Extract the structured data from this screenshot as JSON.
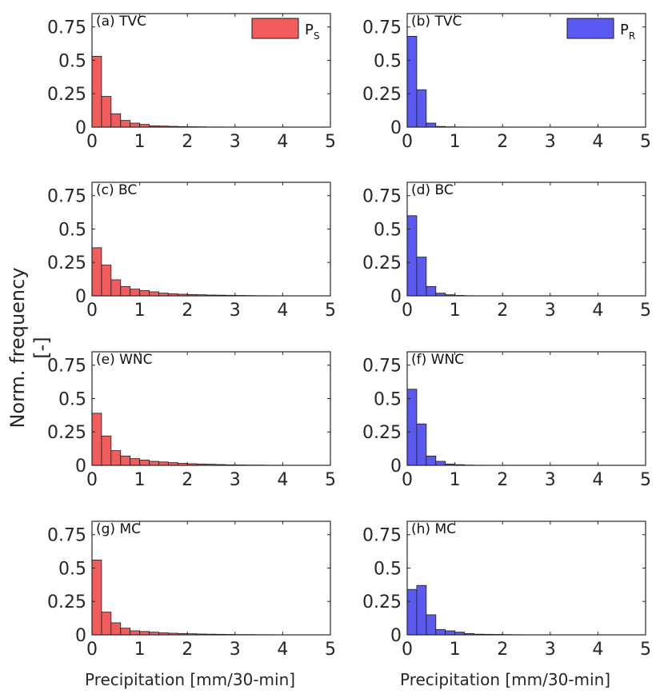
{
  "figure": {
    "ylabel": "Norm. frequency [-]",
    "xlabel_left": "Precipitation [mm/30-min]",
    "xlabel_right": "Precipitation [mm/30-min]",
    "colors": {
      "PS": "#f25c5c",
      "PR": "#5a5af2",
      "axis": "#262626"
    }
  },
  "chart_data": [
    {
      "type": "bar",
      "panel_label": "(a) TVC",
      "legend": {
        "name": "P",
        "sub": "S"
      },
      "xlim": [
        0,
        5
      ],
      "ylim": [
        0,
        0.85
      ],
      "xticks": [
        "0",
        "1",
        "2",
        "3",
        "4",
        "5"
      ],
      "yticks": [
        "0",
        "0.25",
        "0.5",
        "0.75"
      ],
      "bin_width": 0.2,
      "values": [
        0.53,
        0.23,
        0.1,
        0.05,
        0.03,
        0.02,
        0.01,
        0.008,
        0.006,
        0.004,
        0.003,
        0.002,
        0.001,
        0.001,
        0,
        0,
        0,
        0,
        0,
        0,
        0,
        0,
        0,
        0,
        0
      ]
    },
    {
      "type": "bar",
      "panel_label": "(b) TVC",
      "legend": {
        "name": "P",
        "sub": "R"
      },
      "xlim": [
        0,
        5
      ],
      "ylim": [
        0,
        0.85
      ],
      "xticks": [
        "0",
        "1",
        "2",
        "3",
        "4",
        "5"
      ],
      "yticks": [
        "0",
        "0.25",
        "0.5",
        "0.75"
      ],
      "bin_width": 0.2,
      "values": [
        0.68,
        0.28,
        0.03,
        0.005,
        0.002,
        0.001,
        0,
        0,
        0,
        0,
        0,
        0,
        0,
        0,
        0,
        0,
        0,
        0,
        0,
        0,
        0,
        0,
        0,
        0,
        0
      ]
    },
    {
      "type": "bar",
      "panel_label": "(c) BC",
      "xlim": [
        0,
        5
      ],
      "ylim": [
        0,
        0.85
      ],
      "xticks": [
        "0",
        "1",
        "2",
        "3",
        "4",
        "5"
      ],
      "yticks": [
        "0",
        "0.25",
        "0.5",
        "0.75"
      ],
      "bin_width": 0.2,
      "values": [
        0.36,
        0.23,
        0.12,
        0.07,
        0.05,
        0.04,
        0.03,
        0.02,
        0.015,
        0.012,
        0.01,
        0.008,
        0.006,
        0.005,
        0.004,
        0.003,
        0.002,
        0.001,
        0.001,
        0,
        0,
        0,
        0,
        0,
        0
      ]
    },
    {
      "type": "bar",
      "panel_label": "(d) BC",
      "xlim": [
        0,
        5
      ],
      "ylim": [
        0,
        0.85
      ],
      "xticks": [
        "0",
        "1",
        "2",
        "3",
        "4",
        "5"
      ],
      "yticks": [
        "0",
        "0.25",
        "0.5",
        "0.75"
      ],
      "bin_width": 0.2,
      "values": [
        0.6,
        0.29,
        0.07,
        0.02,
        0.008,
        0.003,
        0.001,
        0,
        0,
        0,
        0,
        0,
        0,
        0,
        0,
        0,
        0,
        0,
        0,
        0,
        0,
        0,
        0,
        0,
        0
      ]
    },
    {
      "type": "bar",
      "panel_label": "(e) WNC",
      "xlim": [
        0,
        5
      ],
      "ylim": [
        0,
        0.85
      ],
      "xticks": [
        "0",
        "1",
        "2",
        "3",
        "4",
        "5"
      ],
      "yticks": [
        "0",
        "0.25",
        "0.5",
        "0.75"
      ],
      "bin_width": 0.2,
      "values": [
        0.39,
        0.22,
        0.11,
        0.07,
        0.05,
        0.04,
        0.03,
        0.025,
        0.02,
        0.015,
        0.012,
        0.01,
        0.008,
        0.006,
        0.004,
        0.003,
        0.002,
        0.002,
        0.001,
        0.001,
        0,
        0,
        0,
        0,
        0
      ]
    },
    {
      "type": "bar",
      "panel_label": "(f) WNC",
      "xlim": [
        0,
        5
      ],
      "ylim": [
        0,
        0.85
      ],
      "xticks": [
        "0",
        "1",
        "2",
        "3",
        "4",
        "5"
      ],
      "yticks": [
        "0",
        "0.25",
        "0.5",
        "0.75"
      ],
      "bin_width": 0.2,
      "values": [
        0.57,
        0.31,
        0.07,
        0.03,
        0.01,
        0.005,
        0.002,
        0.001,
        0,
        0,
        0,
        0,
        0,
        0,
        0,
        0,
        0,
        0,
        0,
        0,
        0,
        0,
        0,
        0,
        0
      ]
    },
    {
      "type": "bar",
      "panel_label": "(g) MC",
      "xlim": [
        0,
        5
      ],
      "ylim": [
        0,
        0.85
      ],
      "xticks": [
        "0",
        "1",
        "2",
        "3",
        "4",
        "5"
      ],
      "yticks": [
        "0",
        "0.25",
        "0.5",
        "0.75"
      ],
      "bin_width": 0.2,
      "values": [
        0.56,
        0.17,
        0.09,
        0.05,
        0.03,
        0.025,
        0.02,
        0.015,
        0.012,
        0.01,
        0.008,
        0.006,
        0.005,
        0.004,
        0.003,
        0.002,
        0.002,
        0.001,
        0.001,
        0,
        0,
        0,
        0,
        0,
        0
      ]
    },
    {
      "type": "bar",
      "panel_label": "(h) MC",
      "xlim": [
        0,
        5
      ],
      "ylim": [
        0,
        0.85
      ],
      "xticks": [
        "0",
        "1",
        "2",
        "3",
        "4",
        "5"
      ],
      "yticks": [
        "0",
        "0.25",
        "0.5",
        "0.75"
      ],
      "bin_width": 0.2,
      "values": [
        0.34,
        0.37,
        0.15,
        0.04,
        0.03,
        0.02,
        0.01,
        0.005,
        0.004,
        0.003,
        0.002,
        0.001,
        0,
        0,
        0,
        0,
        0,
        0,
        0,
        0,
        0,
        0,
        0,
        0,
        0
      ]
    }
  ]
}
